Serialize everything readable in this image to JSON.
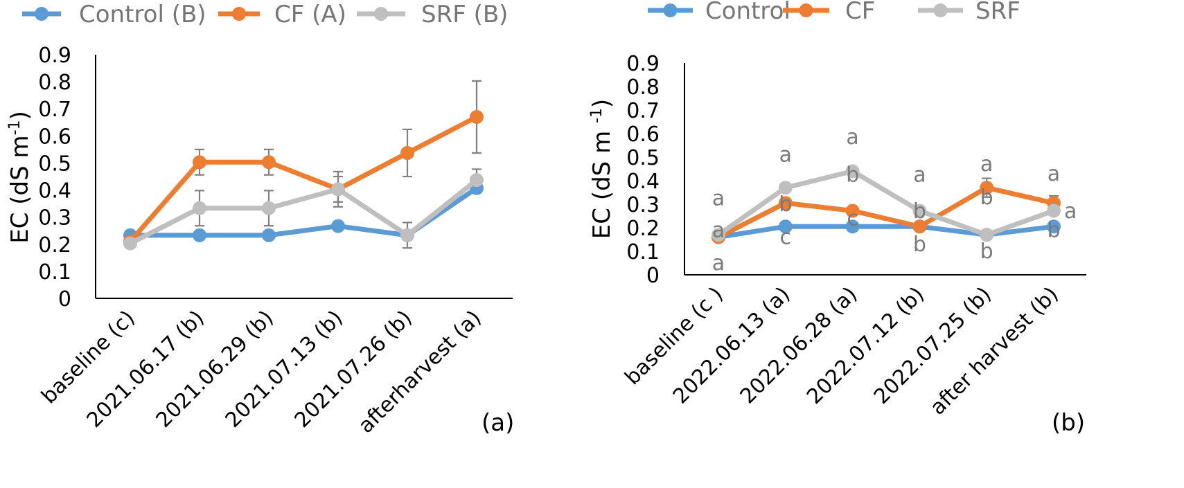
{
  "colors": {
    "Control": "#5b9bd5",
    "CF": "#ed7d31",
    "SRF": "#bfbfbf",
    "errorbar": "#808080",
    "axis": "#000000"
  },
  "chart_data": [
    {
      "type": "line",
      "panel_label": "(a)",
      "ylabel": "EC (dS m",
      "ylabel_sup": "-1",
      "ylabel_close": ")",
      "ylim": [
        0,
        0.9
      ],
      "yticks": [
        "0",
        "0.1",
        "0.2",
        "0.3",
        "0.4",
        "0.5",
        "0.6",
        "0.7",
        "0.8",
        "0.9"
      ],
      "categories": [
        "baseline (c)",
        "2021.06.17 (b)",
        "2021.06.29 (b)",
        "2021.07.13 (b)",
        "2021.07.26 (b)",
        "afterharvest (a)"
      ],
      "legend_position": "top",
      "series": [
        {
          "name": "Control (B)",
          "key": "Control",
          "values": [
            0.233,
            0.233,
            0.233,
            0.267,
            0.233,
            0.407
          ],
          "errors": [
            null,
            null,
            null,
            null,
            null,
            null
          ]
        },
        {
          "name": "CF (A)",
          "key": "CF",
          "values": [
            0.21,
            0.503,
            0.503,
            0.403,
            0.537,
            0.67
          ],
          "errors": [
            0.015,
            0.047,
            0.047,
            0.047,
            0.087,
            0.133
          ]
        },
        {
          "name": "SRF (B)",
          "key": "SRF",
          "values": [
            0.203,
            0.333,
            0.333,
            0.403,
            0.233,
            0.437
          ],
          "errors": [
            0.015,
            0.065,
            0.065,
            0.065,
            0.047,
            0.04
          ]
        }
      ]
    },
    {
      "type": "line",
      "panel_label": "(b)",
      "ylabel": "EC (dS m ",
      "ylabel_sup": "-1",
      "ylabel_close": ")",
      "ylim": [
        0,
        0.9
      ],
      "yticks": [
        "0",
        "0.1",
        "0.2",
        "0.3",
        "0.4",
        "0.5",
        "0.6",
        "0.7",
        "0.8",
        "0.9"
      ],
      "categories": [
        "baseline (c )",
        "2022.06.13 (a)",
        "2022.06.28 (a)",
        "2022.07.12 (b)",
        "2022.07.25 (b)",
        "after harvest (b)"
      ],
      "legend_position": "top",
      "series": [
        {
          "name": "Control",
          "key": "Control",
          "values": [
            0.16,
            0.205,
            0.205,
            0.205,
            0.17,
            0.205
          ],
          "errors": [
            null,
            null,
            null,
            null,
            null,
            null
          ]
        },
        {
          "name": "CF",
          "key": "CF",
          "values": [
            0.16,
            0.305,
            0.272,
            0.205,
            0.37,
            0.305
          ],
          "errors": [
            null,
            null,
            null,
            null,
            0.04,
            0.03
          ]
        },
        {
          "name": "SRF",
          "key": "SRF",
          "values": [
            0.17,
            0.37,
            0.44,
            0.272,
            0.17,
            0.272
          ],
          "errors": [
            null,
            null,
            null,
            null,
            null,
            null
          ]
        }
      ],
      "annotations": [
        {
          "text": "a",
          "x_index": 0,
          "y": 0.325
        },
        {
          "text": "a",
          "x_index": 0,
          "y": 0.19
        },
        {
          "text": "a",
          "x_index": 0,
          "y": 0.05
        },
        {
          "text": "a",
          "x_index": 1,
          "y": 0.51
        },
        {
          "text": "b",
          "x_index": 1,
          "y": 0.3
        },
        {
          "text": "c",
          "x_index": 1,
          "y": 0.16
        },
        {
          "text": "a",
          "x_index": 2,
          "y": 0.585
        },
        {
          "text": "b",
          "x_index": 2,
          "y": 0.425
        },
        {
          "text": "c",
          "x_index": 2,
          "y": 0.24
        },
        {
          "text": "a",
          "x_index": 3,
          "y": 0.425
        },
        {
          "text": "b",
          "x_index": 3,
          "y": 0.27
        },
        {
          "text": "b",
          "x_index": 3,
          "y": 0.13
        },
        {
          "text": "a",
          "x_index": 4,
          "y": 0.47
        },
        {
          "text": "b",
          "x_index": 4,
          "y": 0.33
        },
        {
          "text": "b",
          "x_index": 4,
          "y": 0.1
        },
        {
          "text": "a",
          "x_index": 5,
          "y": 0.43
        },
        {
          "text": "a",
          "x_index": 5.25,
          "y": 0.27
        },
        {
          "text": "b",
          "x_index": 5,
          "y": 0.19
        }
      ]
    }
  ]
}
